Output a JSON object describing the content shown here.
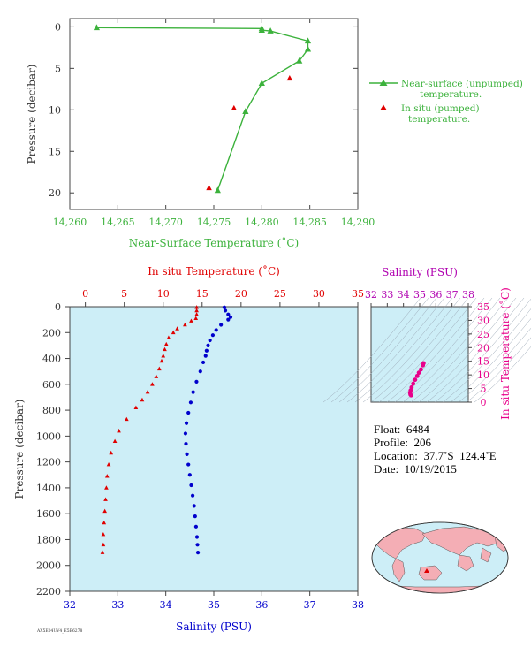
{
  "chart_data": [
    {
      "type": "line",
      "xlabel": "Near-Surface Temperature (˚C)",
      "ylabel": "Pressure (decibar)",
      "xlim": [
        14.26,
        14.29
      ],
      "ylim": [
        22,
        -1
      ],
      "x_ticks": [
        "14.260",
        "14.265",
        "14.270",
        "14.275",
        "14.280",
        "14.285",
        "14.290"
      ],
      "y_ticks": [
        "0",
        "5",
        "10",
        "15",
        "20"
      ],
      "legend": {
        "placement": "right",
        "unpumped_line1": "Near-surface (unpumped)",
        "unpumped_line2": "temperature.",
        "pumped_line1": "In situ (pumped)",
        "pumped_line2": "temperature."
      },
      "series": [
        {
          "name": "Near-surface (unpumped) temperature.",
          "color": "#3cb23c",
          "marker": "triangle",
          "points": [
            [
              14.2628,
              0.1
            ],
            [
              14.28,
              0.2
            ],
            [
              14.28,
              0.4
            ],
            [
              14.2809,
              0.5
            ],
            [
              14.2848,
              1.7
            ],
            [
              14.2848,
              2.7
            ],
            [
              14.2839,
              4.1
            ],
            [
              14.28,
              6.8
            ],
            [
              14.2783,
              10.2
            ],
            [
              14.2754,
              19.7
            ]
          ]
        },
        {
          "name": "In situ (pumped) temperature.",
          "color": "#e00000",
          "marker": "triangle",
          "points": [
            [
              14.2829,
              6.2
            ],
            [
              14.2771,
              9.8
            ],
            [
              14.2745,
              19.4
            ]
          ]
        }
      ]
    },
    {
      "type": "scatter",
      "xlabel_top": "In situ Temperature (˚C)",
      "xlabel_bottom": "Salinity (PSU)",
      "ylabel": "Pressure (decibar)",
      "xlim_temp": [
        -2,
        35
      ],
      "xlim_sal": [
        32,
        38
      ],
      "ylim": [
        2200,
        0
      ],
      "top_ticks": [
        "0",
        "5",
        "10",
        "15",
        "20",
        "25",
        "30",
        "35"
      ],
      "bottom_ticks": [
        "32",
        "33",
        "34",
        "35",
        "36",
        "37",
        "38"
      ],
      "y_ticks": [
        "0",
        "200",
        "400",
        "600",
        "800",
        "1000",
        "1200",
        "1400",
        "1600",
        "1800",
        "2000",
        "2200"
      ],
      "temperature": {
        "color": "#e00000",
        "marker": "triangle",
        "points": [
          [
            14.3,
            5
          ],
          [
            14.3,
            30
          ],
          [
            14.3,
            60
          ],
          [
            14.2,
            90
          ],
          [
            13.6,
            110
          ],
          [
            12.8,
            140
          ],
          [
            11.8,
            170
          ],
          [
            11.3,
            200
          ],
          [
            10.7,
            240
          ],
          [
            10.4,
            290
          ],
          [
            10.2,
            330
          ],
          [
            10.0,
            380
          ],
          [
            9.8,
            420
          ],
          [
            9.5,
            480
          ],
          [
            9.1,
            540
          ],
          [
            8.6,
            600
          ],
          [
            8.0,
            660
          ],
          [
            7.3,
            720
          ],
          [
            6.5,
            780
          ],
          [
            5.3,
            870
          ],
          [
            4.3,
            960
          ],
          [
            3.8,
            1040
          ],
          [
            3.3,
            1130
          ],
          [
            3.0,
            1220
          ],
          [
            2.8,
            1310
          ],
          [
            2.7,
            1400
          ],
          [
            2.6,
            1490
          ],
          [
            2.5,
            1580
          ],
          [
            2.4,
            1670
          ],
          [
            2.3,
            1760
          ],
          [
            2.3,
            1840
          ],
          [
            2.2,
            1900
          ]
        ]
      },
      "salinity": {
        "color": "#0000cc",
        "marker": "circle",
        "points": [
          [
            35.22,
            5
          ],
          [
            35.24,
            30
          ],
          [
            35.3,
            60
          ],
          [
            35.35,
            80
          ],
          [
            35.3,
            100
          ],
          [
            35.15,
            140
          ],
          [
            35.05,
            180
          ],
          [
            34.98,
            220
          ],
          [
            34.92,
            260
          ],
          [
            34.88,
            300
          ],
          [
            34.85,
            340
          ],
          [
            34.83,
            380
          ],
          [
            34.78,
            430
          ],
          [
            34.72,
            500
          ],
          [
            34.64,
            580
          ],
          [
            34.57,
            660
          ],
          [
            34.52,
            740
          ],
          [
            34.47,
            820
          ],
          [
            34.43,
            900
          ],
          [
            34.41,
            980
          ],
          [
            34.42,
            1060
          ],
          [
            34.44,
            1140
          ],
          [
            34.47,
            1220
          ],
          [
            34.5,
            1300
          ],
          [
            34.53,
            1380
          ],
          [
            34.56,
            1460
          ],
          [
            34.59,
            1540
          ],
          [
            34.61,
            1620
          ],
          [
            34.63,
            1700
          ],
          [
            34.65,
            1780
          ],
          [
            34.66,
            1840
          ],
          [
            34.67,
            1900
          ]
        ]
      }
    },
    {
      "type": "scatter",
      "title": "Salinity (PSU)",
      "ylabel": "In situ Temperature (˚C)",
      "xlim": [
        32,
        38
      ],
      "ylim": [
        0,
        35
      ],
      "x_ticks": [
        "32",
        "33",
        "34",
        "35",
        "36",
        "37",
        "38"
      ],
      "y_ticks": [
        "0",
        "5",
        "10",
        "15",
        "20",
        "25",
        "30",
        "35"
      ],
      "color": "#e8008a",
      "points": [
        [
          35.24,
          14.3
        ],
        [
          35.2,
          13.5
        ],
        [
          35.08,
          12.0
        ],
        [
          34.95,
          10.8
        ],
        [
          34.85,
          9.6
        ],
        [
          34.72,
          8.2
        ],
        [
          34.6,
          6.8
        ],
        [
          34.5,
          5.4
        ],
        [
          34.44,
          4.3
        ],
        [
          34.41,
          3.4
        ],
        [
          34.43,
          2.8
        ],
        [
          34.47,
          2.5
        ]
      ]
    }
  ],
  "info": {
    "float": "Float:  6484",
    "profile": "Profile:  206",
    "location": "Location:  37.7˚S  124.4˚E",
    "date": "Date:  10/19/2015"
  },
  "footer_code": "AX5E04UV4_E5B6278",
  "map": {
    "marker": "float-position",
    "marker_color": "#e00000"
  }
}
